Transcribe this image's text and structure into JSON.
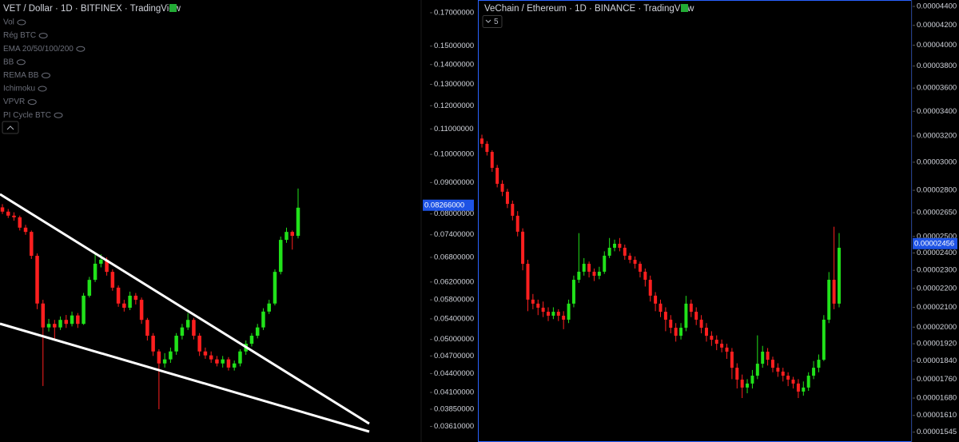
{
  "chart_data": [
    {
      "type": "candlestick",
      "title": "VET / Dollar · 1D · BITFINEX · TradingView",
      "indicators": [
        "Vol",
        "Rég BTC",
        "EMA 20/50/100/200",
        "BB",
        "REMA BB",
        "Ichimoku",
        "VPVR",
        "PI Cycle BTC"
      ],
      "log_scale": true,
      "up_color": "#21e21a",
      "down_color": "#ff1f1f",
      "ylim": [
        0.03405,
        0.1783
      ],
      "yticks": [
        {
          "value": 0.17,
          "label": "0.17000000"
        },
        {
          "value": 0.15,
          "label": "0.15000000"
        },
        {
          "value": 0.14,
          "label": "0.14000000"
        },
        {
          "value": 0.13,
          "label": "0.13000000"
        },
        {
          "value": 0.12,
          "label": "0.12000000"
        },
        {
          "value": 0.11,
          "label": "0.11000000"
        },
        {
          "value": 0.1,
          "label": "0.10000000"
        },
        {
          "value": 0.09,
          "label": "0.09000000"
        },
        {
          "value": 0.08,
          "label": "0.08000000"
        },
        {
          "value": 0.074,
          "label": "0.07400000"
        },
        {
          "value": 0.068,
          "label": "0.06800000"
        },
        {
          "value": 0.062,
          "label": "0.06200000"
        },
        {
          "value": 0.058,
          "label": "0.05800000"
        },
        {
          "value": 0.054,
          "label": "0.05400000"
        },
        {
          "value": 0.05,
          "label": "0.05000000"
        },
        {
          "value": 0.047,
          "label": "0.04700000"
        },
        {
          "value": 0.044,
          "label": "0.04400000"
        },
        {
          "value": 0.041,
          "label": "0.04100000"
        },
        {
          "value": 0.0385,
          "label": "0.03850000"
        },
        {
          "value": 0.0361,
          "label": "0.03610000"
        }
      ],
      "last_price": {
        "value": 0.08266,
        "label": "0.08266000"
      },
      "open": [
        0.082,
        0.0807,
        0.0795,
        0.079,
        0.076,
        0.0748,
        0.0684,
        0.0572,
        0.0523,
        0.053,
        0.0523,
        0.0538,
        0.053,
        0.0547,
        0.053,
        0.0589,
        0.0625,
        0.0664,
        0.0674,
        0.0644,
        0.0607,
        0.0572,
        0.0563,
        0.0589,
        0.058,
        0.0538,
        0.0507,
        0.0478,
        0.0457,
        0.0464,
        0.0478,
        0.0507,
        0.0523,
        0.0538,
        0.0507,
        0.0478,
        0.0471,
        0.0464,
        0.0457,
        0.0464,
        0.045,
        0.0457,
        0.0478,
        0.0492,
        0.0507,
        0.0523,
        0.0555,
        0.0572,
        0.0644,
        0.0726,
        0.0748,
        0.0737
      ],
      "high": [
        0.083,
        0.0815,
        0.0805,
        0.0795,
        0.0768,
        0.0752,
        0.069,
        0.058,
        0.054,
        0.0538,
        0.0545,
        0.0548,
        0.0555,
        0.0552,
        0.0595,
        0.0632,
        0.069,
        0.0688,
        0.068,
        0.065,
        0.0612,
        0.058,
        0.0598,
        0.0595,
        0.0585,
        0.0542,
        0.0512,
        0.0482,
        0.0475,
        0.0485,
        0.0512,
        0.053,
        0.0552,
        0.0542,
        0.0512,
        0.0485,
        0.0478,
        0.047,
        0.047,
        0.0468,
        0.0462,
        0.0482,
        0.0498,
        0.0512,
        0.053,
        0.0562,
        0.058,
        0.065,
        0.0735,
        0.076,
        0.0752,
        0.088
      ],
      "low": [
        0.08,
        0.0788,
        0.078,
        0.0752,
        0.074,
        0.0676,
        0.056,
        0.042,
        0.0515,
        0.05,
        0.0518,
        0.0522,
        0.0525,
        0.0522,
        0.0528,
        0.0585,
        0.062,
        0.0655,
        0.0635,
        0.06,
        0.0565,
        0.0555,
        0.0558,
        0.057,
        0.053,
        0.0498,
        0.047,
        0.0385,
        0.045,
        0.0458,
        0.0472,
        0.05,
        0.0518,
        0.05,
        0.047,
        0.0465,
        0.0458,
        0.0452,
        0.045,
        0.0445,
        0.0445,
        0.0452,
        0.0472,
        0.0487,
        0.0502,
        0.0518,
        0.055,
        0.0568,
        0.0638,
        0.0718,
        0.07,
        0.073
      ],
      "close": [
        0.0807,
        0.0795,
        0.079,
        0.076,
        0.0748,
        0.0684,
        0.0572,
        0.0523,
        0.053,
        0.0523,
        0.0538,
        0.053,
        0.0547,
        0.053,
        0.0589,
        0.0625,
        0.0664,
        0.0674,
        0.0644,
        0.0607,
        0.0572,
        0.0563,
        0.0589,
        0.058,
        0.0538,
        0.0507,
        0.0478,
        0.0457,
        0.0464,
        0.0478,
        0.0507,
        0.0523,
        0.0538,
        0.0507,
        0.0478,
        0.0471,
        0.0464,
        0.0457,
        0.0464,
        0.045,
        0.0457,
        0.0478,
        0.0492,
        0.0507,
        0.0523,
        0.0555,
        0.0572,
        0.0644,
        0.0726,
        0.0748,
        0.0737,
        0.0819
      ]
    },
    {
      "type": "candlestick",
      "title": "VeChain / Ethereum · 1D · BINANCE · TradingView",
      "hidden_indicators": 5,
      "log_scale": true,
      "up_color": "#21e21a",
      "down_color": "#ff1f1f",
      "ylim": [
        1.508e-05,
        4.47e-05
      ],
      "yticks": [
        {
          "value": 4.4e-05,
          "label": "0.00004400"
        },
        {
          "value": 4.2e-05,
          "label": "0.00004200"
        },
        {
          "value": 4e-05,
          "label": "0.00004000"
        },
        {
          "value": 3.8e-05,
          "label": "0.00003800"
        },
        {
          "value": 3.6e-05,
          "label": "0.00003600"
        },
        {
          "value": 3.4e-05,
          "label": "0.00003400"
        },
        {
          "value": 3.2e-05,
          "label": "0.00003200"
        },
        {
          "value": 3e-05,
          "label": "0.00003000"
        },
        {
          "value": 2.8e-05,
          "label": "0.00002800"
        },
        {
          "value": 2.65e-05,
          "label": "0.00002650"
        },
        {
          "value": 2.5e-05,
          "label": "0.00002500"
        },
        {
          "value": 2.4e-05,
          "label": "0.00002400"
        },
        {
          "value": 2.3e-05,
          "label": "0.00002300"
        },
        {
          "value": 2.2e-05,
          "label": "0.00002200"
        },
        {
          "value": 2.1e-05,
          "label": "0.00002100"
        },
        {
          "value": 2e-05,
          "label": "0.00002000"
        },
        {
          "value": 1.92e-05,
          "label": "0.00001920"
        },
        {
          "value": 1.84e-05,
          "label": "0.00001840"
        },
        {
          "value": 1.76e-05,
          "label": "0.00001760"
        },
        {
          "value": 1.68e-05,
          "label": "0.00001680"
        },
        {
          "value": 1.61e-05,
          "label": "0.00001610"
        },
        {
          "value": 1.545e-05,
          "label": "0.00001545"
        }
      ],
      "last_price": {
        "value": 2.456e-05,
        "label": "0.00002456"
      },
      "open": [
        3.18e-05,
        3.139e-05,
        3.077e-05,
        2.959e-05,
        2.845e-05,
        2.79e-05,
        2.708e-05,
        2.63e-05,
        2.529e-05,
        2.337e-05,
        2.14e-05,
        2.119e-05,
        2.098e-05,
        2.077e-05,
        2.057e-05,
        2.077e-05,
        2.057e-05,
        2.037e-05,
        2.119e-05,
        2.247e-05,
        2.292e-05,
        2.337e-05,
        2.292e-05,
        2.269e-05,
        2.292e-05,
        2.384e-05,
        2.431e-05,
        2.455e-05,
        2.431e-05,
        2.384e-05,
        2.36e-05,
        2.337e-05,
        2.292e-05,
        2.247e-05,
        2.161e-05,
        2.119e-05,
        2.077e-05,
        2.037e-05,
        1.997e-05,
        1.958e-05,
        1.997e-05,
        2.119e-05,
        2.077e-05,
        2.037e-05,
        1.997e-05,
        1.958e-05,
        1.939e-05,
        1.92e-05,
        1.902e-05,
        1.883e-05,
        1.81e-05,
        1.758e-05,
        1.724e-05,
        1.741e-05,
        1.775e-05,
        1.828e-05,
        1.883e-05,
        1.846e-05,
        1.81e-05,
        1.793e-05,
        1.775e-05,
        1.758e-05,
        1.741e-05,
        1.707e-05,
        1.724e-05,
        1.775e-05,
        1.81e-05,
        1.846e-05,
        2.037e-05,
        2.247e-05,
        2.119e-05
      ],
      "high": [
        3.21e-05,
        3.16e-05,
        3.09e-05,
        2.98e-05,
        2.87e-05,
        2.81e-05,
        2.73e-05,
        2.66e-05,
        2.55e-05,
        2.36e-05,
        2.17e-05,
        2.14e-05,
        2.13e-05,
        2.1e-05,
        2.1e-05,
        2.09e-05,
        2.08e-05,
        2.14e-05,
        2.27e-05,
        2.52e-05,
        2.37e-05,
        2.35e-05,
        2.31e-05,
        2.32e-05,
        2.41e-05,
        2.49e-05,
        2.48e-05,
        2.49e-05,
        2.45e-05,
        2.4e-05,
        2.38e-05,
        2.35e-05,
        2.31e-05,
        2.27e-05,
        2.18e-05,
        2.14e-05,
        2.1e-05,
        2.06e-05,
        2.02e-05,
        2.02e-05,
        2.16e-05,
        2.14e-05,
        2.1e-05,
        2.06e-05,
        2.02e-05,
        1.98e-05,
        1.96e-05,
        1.94e-05,
        1.92e-05,
        1.9e-05,
        1.83e-05,
        1.78e-05,
        1.76e-05,
        1.8e-05,
        1.96e-05,
        1.91e-05,
        1.9e-05,
        1.86e-05,
        1.83e-05,
        1.81e-05,
        1.79e-05,
        1.77e-05,
        1.76e-05,
        1.75e-05,
        1.79e-05,
        1.84e-05,
        1.87e-05,
        2.06e-05,
        2.29e-05,
        2.56e-05,
        2.52e-05
      ],
      "low": [
        3.11e-05,
        3.05e-05,
        2.93e-05,
        2.82e-05,
        2.76e-05,
        2.68e-05,
        2.6e-05,
        2.5e-05,
        2.3e-05,
        2.08e-05,
        2.09e-05,
        2.06e-05,
        2.05e-05,
        2.03e-05,
        2.04e-05,
        2.03e-05,
        1.99e-05,
        2.02e-05,
        2.1e-05,
        2.23e-05,
        2.27e-05,
        2.26e-05,
        2.24e-05,
        2.25e-05,
        2.28e-05,
        2.37e-05,
        2.41e-05,
        2.41e-05,
        2.36e-05,
        2.34e-05,
        2.31e-05,
        2.26e-05,
        2.21e-05,
        2.13e-05,
        2.08e-05,
        2.05e-05,
        1.98e-05,
        1.97e-05,
        1.93e-05,
        1.94e-05,
        1.98e-05,
        2.05e-05,
        2.01e-05,
        1.97e-05,
        1.93e-05,
        1.91e-05,
        1.89e-05,
        1.88e-05,
        1.85e-05,
        1.76e-05,
        1.72e-05,
        1.68e-05,
        1.7e-05,
        1.72e-05,
        1.76e-05,
        1.81e-05,
        1.82e-05,
        1.79e-05,
        1.77e-05,
        1.75e-05,
        1.73e-05,
        1.72e-05,
        1.68e-05,
        1.69e-05,
        1.71e-05,
        1.76e-05,
        1.79e-05,
        1.84e-05,
        2.02e-05,
        2.09e-05,
        2.1e-05
      ],
      "close": [
        3.139e-05,
        3.077e-05,
        2.959e-05,
        2.845e-05,
        2.79e-05,
        2.708e-05,
        2.63e-05,
        2.529e-05,
        2.337e-05,
        2.14e-05,
        2.119e-05,
        2.098e-05,
        2.077e-05,
        2.057e-05,
        2.077e-05,
        2.057e-05,
        2.037e-05,
        2.119e-05,
        2.247e-05,
        2.292e-05,
        2.337e-05,
        2.292e-05,
        2.269e-05,
        2.292e-05,
        2.384e-05,
        2.431e-05,
        2.455e-05,
        2.431e-05,
        2.384e-05,
        2.36e-05,
        2.337e-05,
        2.292e-05,
        2.247e-05,
        2.161e-05,
        2.119e-05,
        2.077e-05,
        2.037e-05,
        1.997e-05,
        1.958e-05,
        1.997e-05,
        2.119e-05,
        2.077e-05,
        2.037e-05,
        1.997e-05,
        1.958e-05,
        1.939e-05,
        1.92e-05,
        1.902e-05,
        1.883e-05,
        1.81e-05,
        1.758e-05,
        1.724e-05,
        1.741e-05,
        1.775e-05,
        1.828e-05,
        1.883e-05,
        1.846e-05,
        1.81e-05,
        1.793e-05,
        1.775e-05,
        1.758e-05,
        1.741e-05,
        1.707e-05,
        1.724e-05,
        1.775e-05,
        1.81e-05,
        1.846e-05,
        2.037e-05,
        2.247e-05,
        2.119e-05,
        2.431e-05
      ]
    }
  ]
}
